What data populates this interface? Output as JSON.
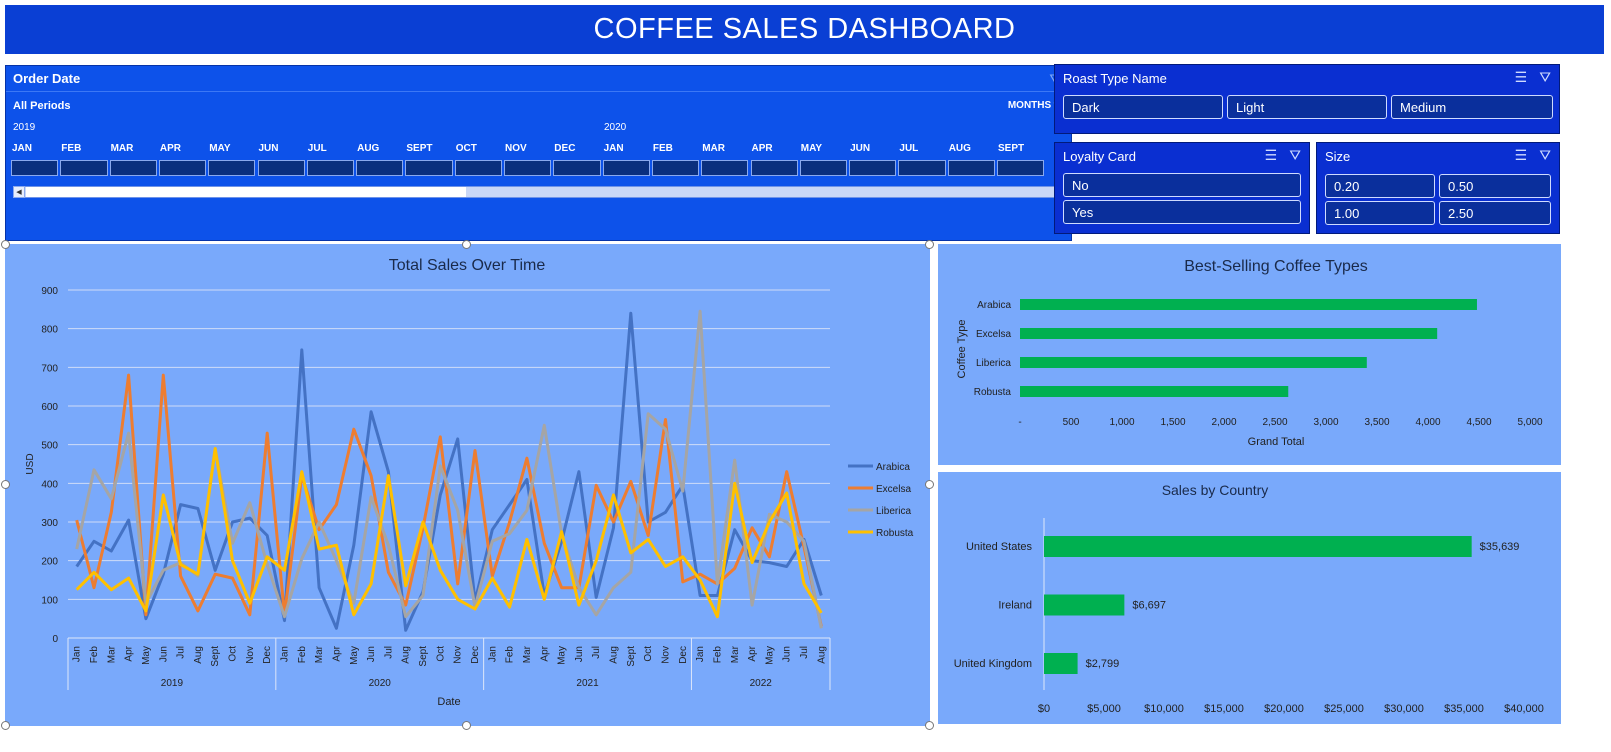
{
  "header": {
    "title": "COFFEE SALES DASHBOARD"
  },
  "timeline": {
    "title": "Order Date",
    "periods_label": "All Periods",
    "granularity": "MONTHS",
    "years": [
      "2019",
      "2020"
    ],
    "months": [
      "JAN",
      "FEB",
      "MAR",
      "APR",
      "MAY",
      "JUN",
      "JUL",
      "AUG",
      "SEPT",
      "OCT",
      "NOV",
      "DEC",
      "JAN",
      "FEB",
      "MAR",
      "APR",
      "MAY",
      "JUN",
      "JUL",
      "AUG",
      "SEPT"
    ]
  },
  "slicers": {
    "roast": {
      "title": "Roast Type Name",
      "items": [
        "Dark",
        "Light",
        "Medium"
      ]
    },
    "loyalty": {
      "title": "Loyalty Card",
      "items": [
        "No",
        "Yes"
      ]
    },
    "size": {
      "title": "Size",
      "items": [
        "0.20",
        "0.50",
        "1.00",
        "2.50"
      ]
    }
  },
  "chart_data": [
    {
      "type": "line",
      "title": "Total Sales Over Time",
      "xlabel": "Date",
      "ylabel": "USD",
      "ylim": [
        0,
        900
      ],
      "yticks": [
        "0",
        "100",
        "200",
        "300",
        "400",
        "500",
        "600",
        "700",
        "800",
        "900"
      ],
      "years": [
        "2019",
        "2020",
        "2021",
        "2022"
      ],
      "categories": [
        "Jan",
        "Feb",
        "Mar",
        "Apr",
        "May",
        "Jun",
        "Jul",
        "Aug",
        "Sept",
        "Oct",
        "Nov",
        "Dec",
        "Jan",
        "Feb",
        "Mar",
        "Apr",
        "May",
        "Jun",
        "Jul",
        "Aug",
        "Sept",
        "Oct",
        "Nov",
        "Dec",
        "Jan",
        "Feb",
        "Mar",
        "Apr",
        "May",
        "Jun",
        "Jul",
        "Aug",
        "Sept",
        "Oct",
        "Nov",
        "Dec",
        "Jan",
        "Feb",
        "Mar",
        "Apr",
        "May",
        "Jun",
        "Jul",
        "Aug"
      ],
      "legend_position": "right",
      "series": [
        {
          "name": "Arabica",
          "color": "#4472c4",
          "values": [
            185,
            250,
            225,
            305,
            50,
            165,
            345,
            335,
            175,
            300,
            310,
            265,
            45,
            745,
            130,
            25,
            240,
            585,
            430,
            20,
            120,
            370,
            515,
            95,
            280,
            345,
            410,
            110,
            250,
            430,
            105,
            285,
            840,
            300,
            325,
            395,
            110,
            110,
            280,
            200,
            195,
            185,
            255,
            110
          ]
        },
        {
          "name": "Excelsa",
          "color": "#ed7d31",
          "values": [
            305,
            130,
            325,
            680,
            60,
            680,
            160,
            70,
            165,
            155,
            60,
            530,
            60,
            420,
            280,
            345,
            540,
            420,
            170,
            85,
            285,
            520,
            140,
            485,
            160,
            300,
            465,
            245,
            130,
            130,
            395,
            300,
            405,
            265,
            565,
            145,
            165,
            140,
            180,
            285,
            210,
            430,
            235,
            30
          ]
        },
        {
          "name": "Liberica",
          "color": "#a5a5a5",
          "values": [
            230,
            435,
            360,
            530,
            90,
            175,
            195,
            160,
            490,
            245,
            350,
            190,
            55,
            205,
            300,
            200,
            90,
            365,
            240,
            55,
            110,
            445,
            330,
            80,
            250,
            270,
            330,
            550,
            270,
            130,
            60,
            130,
            170,
            580,
            540,
            380,
            845,
            140,
            460,
            85,
            320,
            300,
            250,
            25
          ]
        },
        {
          "name": "Robusta",
          "color": "#ffc000",
          "values": [
            125,
            170,
            125,
            155,
            70,
            370,
            190,
            165,
            490,
            200,
            90,
            210,
            175,
            430,
            230,
            240,
            60,
            140,
            420,
            135,
            300,
            175,
            100,
            75,
            155,
            80,
            255,
            100,
            275,
            85,
            200,
            370,
            220,
            255,
            185,
            210,
            150,
            55,
            400,
            195,
            300,
            375,
            140,
            65
          ]
        }
      ]
    },
    {
      "type": "bar",
      "title": "Best-Selling Coffee Types",
      "xlabel": "Grand Total",
      "ylabel": "Coffee Type",
      "xlim": [
        0,
        5000
      ],
      "xticks": [
        "-",
        "500",
        "1,000",
        "1,500",
        "2,000",
        "2,500",
        "3,000",
        "3,500",
        "4,000",
        "4,500",
        "5,000"
      ],
      "categories": [
        "Arabica",
        "Excelsa",
        "Liberica",
        "Robusta"
      ],
      "values": [
        4480,
        4090,
        3400,
        2630
      ],
      "color": "#00b050"
    },
    {
      "type": "bar",
      "title": "Sales by Country",
      "xlim": [
        0,
        40000
      ],
      "xticks": [
        "$0",
        "$5,000",
        "$10,000",
        "$15,000",
        "$20,000",
        "$25,000",
        "$30,000",
        "$35,000",
        "$40,000"
      ],
      "categories": [
        "United States",
        "Ireland",
        "United Kingdom"
      ],
      "values": [
        35639,
        6697,
        2799
      ],
      "data_labels": [
        "$35,639",
        "$6,697",
        "$2,799"
      ],
      "color": "#00b050"
    }
  ]
}
